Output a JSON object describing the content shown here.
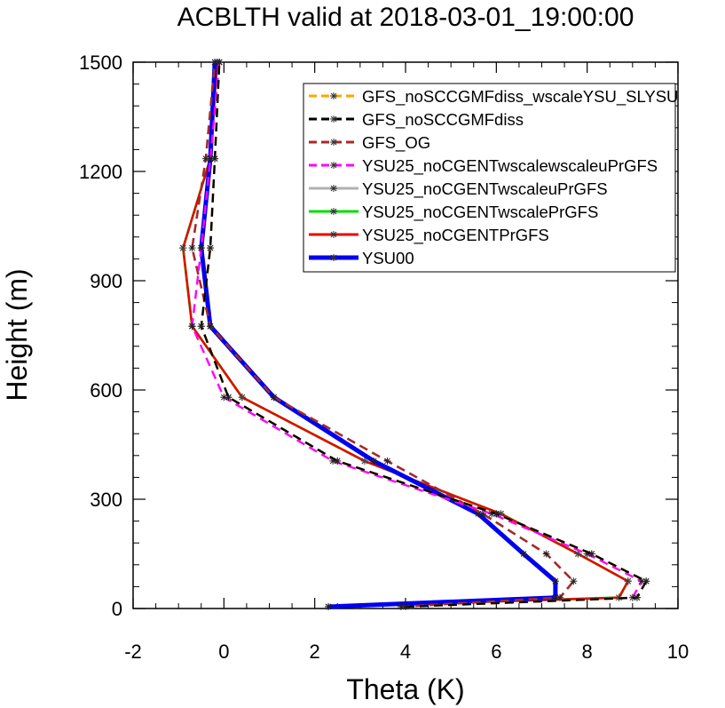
{
  "chart_data": {
    "type": "line",
    "title": "ACBLTH valid at 2018-03-01_19:00:00",
    "xlabel": "Theta (K)",
    "ylabel": "Height (m)",
    "xlim": [
      -2,
      10
    ],
    "ylim": [
      0,
      1500
    ],
    "x_ticks": [
      -2,
      0,
      2,
      4,
      6,
      8,
      10
    ],
    "y_ticks": [
      0,
      300,
      600,
      900,
      1200,
      1500
    ],
    "x_tick_labels": [
      "-2",
      "0",
      "2",
      "4",
      "6",
      "8",
      "10"
    ],
    "y_tick_labels": [
      "0",
      "300",
      "600",
      "900",
      "1200",
      "1500"
    ],
    "grid": false,
    "legend_placement": "top-right",
    "series": [
      {
        "name": "GFS_noSCCGMFdiss_wscaleYSU_SLYSU",
        "color": "#ffa500",
        "dash": "dash",
        "x": [
          4.0,
          9.1,
          9.3,
          8.1,
          6.0,
          2.5,
          0.1,
          -0.5,
          -0.3,
          -0.2,
          -0.1
        ],
        "y": [
          5,
          30,
          75,
          150,
          260,
          405,
          580,
          775,
          990,
          1235,
          1500
        ]
      },
      {
        "name": "GFS_noSCCGMFdiss",
        "color": "#000000",
        "dash": "dash",
        "x": [
          4.0,
          9.1,
          9.3,
          8.1,
          6.0,
          2.5,
          0.1,
          -0.5,
          -0.3,
          -0.2,
          -0.1
        ],
        "y": [
          5,
          30,
          75,
          150,
          260,
          405,
          580,
          775,
          990,
          1235,
          1500
        ]
      },
      {
        "name": "GFS_OG",
        "color": "#a52a2a",
        "dash": "dash",
        "x": [
          3.9,
          7.4,
          7.7,
          7.1,
          5.7,
          3.6,
          1.1,
          -0.3,
          -0.7,
          -0.4,
          -0.2
        ],
        "y": [
          5,
          30,
          75,
          150,
          260,
          405,
          580,
          775,
          990,
          1235,
          1500
        ]
      },
      {
        "name": "YSU25_noCGENTwscalewscaleuPrGFS",
        "color": "#ff00ff",
        "dash": "dash",
        "x": [
          4.0,
          9.0,
          9.2,
          8.0,
          5.9,
          2.4,
          0.0,
          -0.7,
          -0.5,
          -0.3,
          -0.1
        ],
        "y": [
          5,
          30,
          75,
          150,
          260,
          405,
          580,
          775,
          990,
          1235,
          1500
        ]
      },
      {
        "name": "YSU25_noCGENTwscaleuPrGFS",
        "color": "#b0b0b0",
        "dash": "solid",
        "x": [
          2.3,
          8.7,
          8.9,
          7.8,
          6.1,
          3.1,
          0.4,
          -0.7,
          -0.9,
          -0.3,
          -0.15
        ],
        "y": [
          5,
          30,
          75,
          150,
          260,
          405,
          580,
          775,
          990,
          1235,
          1500
        ]
      },
      {
        "name": "YSU25_noCGENTwscalePrGFS",
        "color": "#00dd00",
        "dash": "solid",
        "x": [
          2.3,
          8.7,
          8.9,
          7.8,
          6.1,
          3.1,
          0.4,
          -0.7,
          -0.9,
          -0.3,
          -0.15
        ],
        "y": [
          5,
          30,
          75,
          150,
          260,
          405,
          580,
          775,
          990,
          1235,
          1500
        ]
      },
      {
        "name": "YSU25_noCGENTPrGFS",
        "color": "#ee0000",
        "dash": "solid",
        "x": [
          2.3,
          8.7,
          8.9,
          7.8,
          6.1,
          3.1,
          0.4,
          -0.7,
          -0.9,
          -0.3,
          -0.15
        ],
        "y": [
          5,
          30,
          75,
          150,
          260,
          405,
          580,
          775,
          990,
          1235,
          1500
        ]
      },
      {
        "name": "YSU00",
        "color": "#0000ee",
        "dash": "solid",
        "x": [
          2.3,
          7.3,
          7.3,
          6.6,
          5.6,
          3.3,
          1.1,
          -0.3,
          -0.5,
          -0.3,
          -0.2
        ],
        "y": [
          5,
          30,
          75,
          150,
          260,
          405,
          580,
          775,
          990,
          1235,
          1500
        ]
      }
    ]
  }
}
